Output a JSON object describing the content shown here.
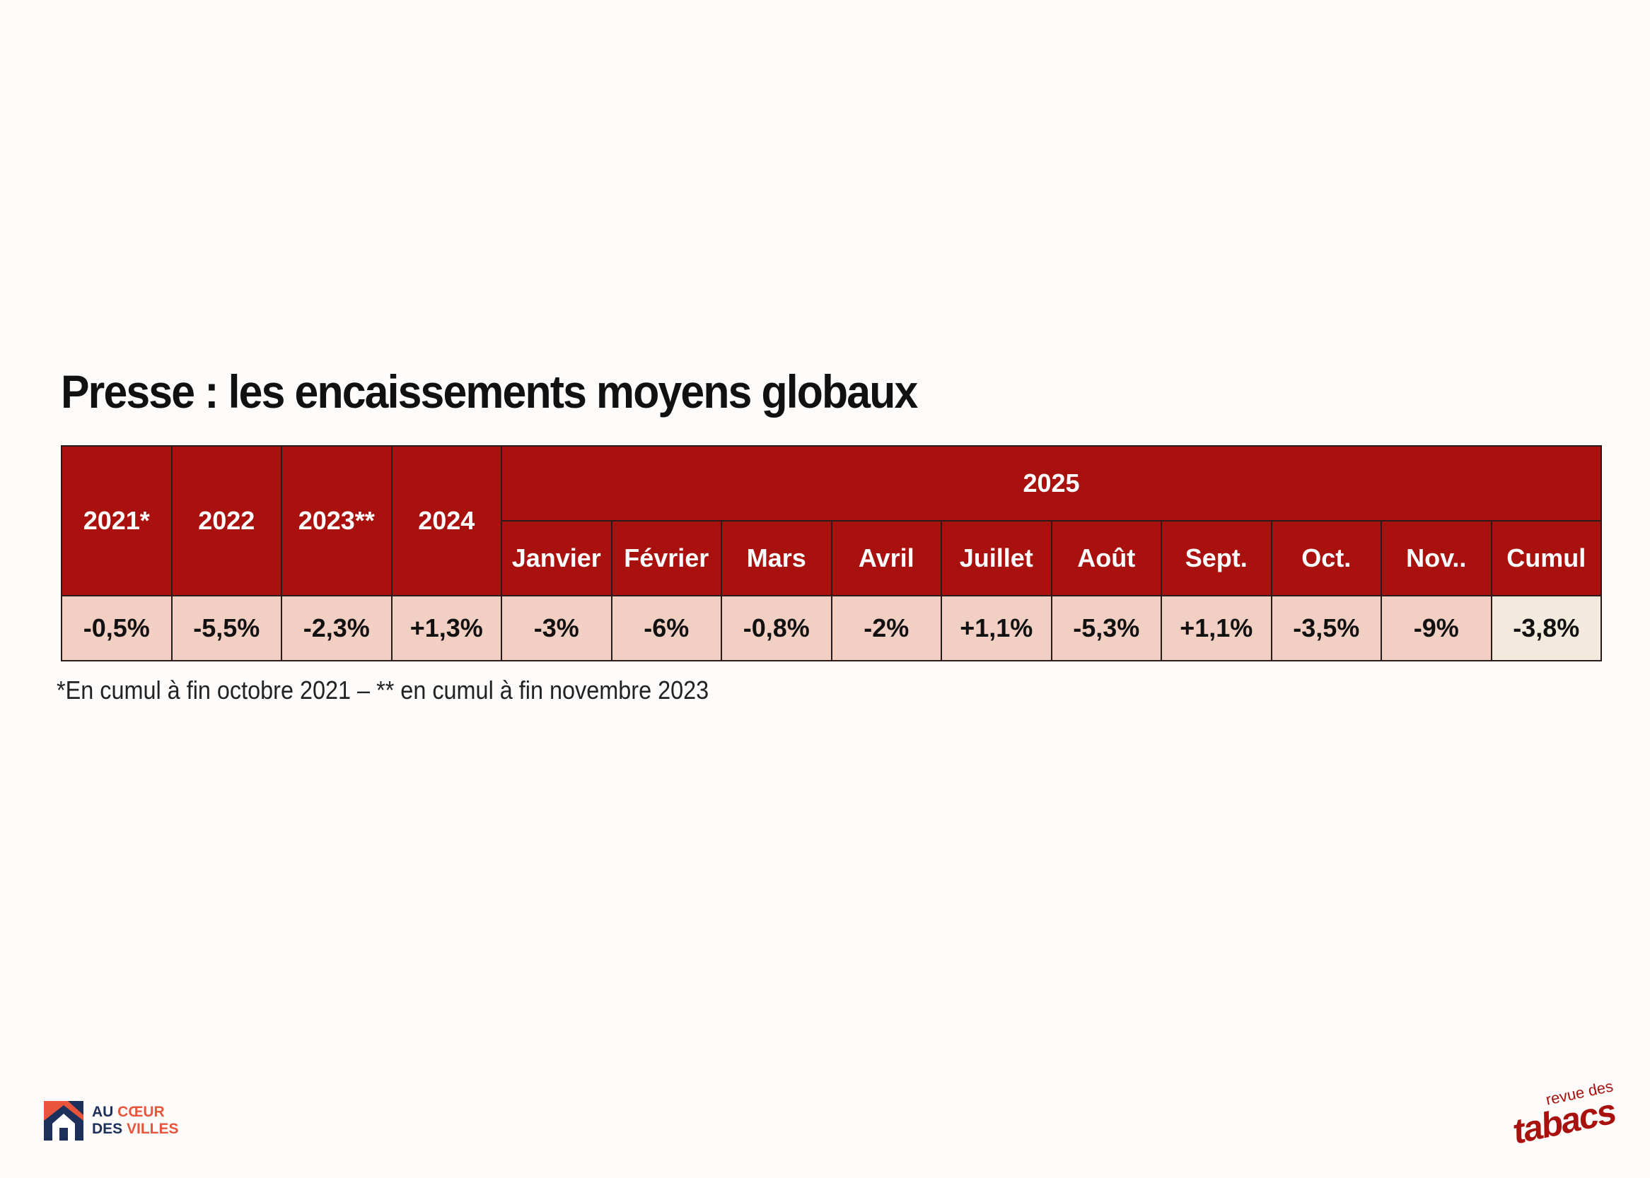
{
  "chart_data": {
    "type": "table",
    "title": "Presse : les encaissements moyens globaux",
    "group_header": "2025",
    "year_headers": [
      "2021*",
      "2022",
      "2023**",
      "2024"
    ],
    "month_headers": [
      "Janvier",
      "Février",
      "Mars",
      "Avril",
      "Juillet",
      "Août",
      "Sept.",
      "Oct.",
      "Nov..",
      "Cumul"
    ],
    "values": [
      "-0,5%",
      "-5,5%",
      "-2,3%",
      "+1,3%",
      "-3%",
      "-6%",
      "-0,8%",
      "-2%",
      "+1,1%",
      "-5,3%",
      "+1,1%",
      "-3,5%",
      "-9%",
      "-3,8%"
    ],
    "footnote": "*En cumul à fin octobre 2021 – ** en cumul à fin novembre 2023"
  },
  "logos": {
    "left": {
      "line1_a": "AU ",
      "line1_b": "CŒUR",
      "line2_a": "DES ",
      "line2_b": "VILLES"
    },
    "right": {
      "small": "revue des",
      "big": "tabacs"
    }
  },
  "colors": {
    "header_red": "#a9110e",
    "value_pink": "#f2cfc3",
    "cumul_header": "#9d8a55",
    "cumul_value": "#f2ebdd"
  }
}
